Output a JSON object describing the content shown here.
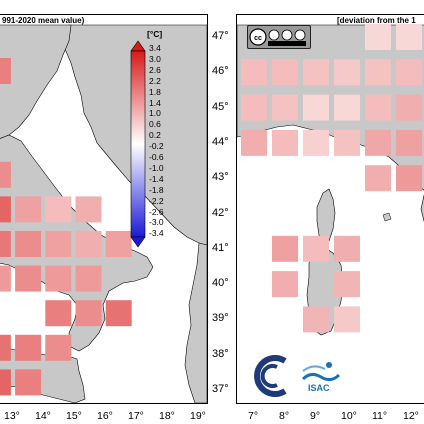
{
  "left_panel": {
    "title": "991-2020 mean value)",
    "lon_ticks": [
      "13°",
      "14°",
      "15°",
      "16°",
      "17°",
      "18°",
      "19°"
    ]
  },
  "right_panel": {
    "title": "[deviation from the 1",
    "lon_ticks": [
      "7°",
      "8°",
      "9°",
      "10°",
      "11°",
      "12°"
    ],
    "lat_ticks": [
      "47°",
      "46°",
      "45°",
      "44°",
      "43°",
      "42°",
      "41°",
      "40°",
      "39°",
      "38°",
      "37°"
    ]
  },
  "colorbar": {
    "unit": "[°C]",
    "labels": [
      "3.4",
      "3.0",
      "2.6",
      "2.2",
      "1.8",
      "1.4",
      "1.0",
      "0.6",
      "0.2",
      "-0.2",
      "-0.6",
      "-1.0",
      "-1.4",
      "-1.8",
      "-2.2",
      "-2.6",
      "-3.0",
      "-3.4"
    ],
    "top_color": "#d81a1a",
    "bottom_color": "#1a1ad8",
    "mid_color": "#ffffff"
  },
  "license_badge": "cc-by-nc-sa",
  "logos": [
    "cnr-logo",
    "isac-logo"
  ],
  "logo_text": "ISAC",
  "land_color": "#c8c8c8",
  "sea_color": "#ffffff",
  "anomaly_cells_left": [
    {
      "lon": 11.5,
      "lat": 46.0,
      "value": 1.9
    },
    {
      "lon": 12.5,
      "lat": 46.0,
      "value": 1.9
    },
    {
      "lon": 11.5,
      "lat": 44.0,
      "value": 1.5
    },
    {
      "lon": 11.5,
      "lat": 43.0,
      "value": 2.3
    },
    {
      "lon": 12.5,
      "lat": 43.0,
      "value": 1.7
    },
    {
      "lon": 11.5,
      "lat": 42.0,
      "value": 2.5
    },
    {
      "lon": 12.5,
      "lat": 42.0,
      "value": 2.3
    },
    {
      "lon": 13.5,
      "lat": 42.0,
      "value": 1.4
    },
    {
      "lon": 14.5,
      "lat": 42.0,
      "value": 1.0
    },
    {
      "lon": 15.5,
      "lat": 42.0,
      "value": 1.2
    },
    {
      "lon": 11.5,
      "lat": 41.0,
      "value": 2.5
    },
    {
      "lon": 12.5,
      "lat": 41.0,
      "value": 2.0
    },
    {
      "lon": 13.5,
      "lat": 41.0,
      "value": 1.7
    },
    {
      "lon": 14.5,
      "lat": 41.0,
      "value": 1.4
    },
    {
      "lon": 15.5,
      "lat": 41.0,
      "value": 1.2
    },
    {
      "lon": 16.5,
      "lat": 41.0,
      "value": 1.4
    },
    {
      "lon": 12.5,
      "lat": 40.0,
      "value": 1.5
    },
    {
      "lon": 13.5,
      "lat": 40.0,
      "value": 1.7
    },
    {
      "lon": 14.5,
      "lat": 40.0,
      "value": 1.5
    },
    {
      "lon": 15.5,
      "lat": 40.0,
      "value": 1.5
    },
    {
      "lon": 14.5,
      "lat": 39.0,
      "value": 1.9
    },
    {
      "lon": 15.5,
      "lat": 39.0,
      "value": 1.7
    },
    {
      "lon": 16.5,
      "lat": 39.0,
      "value": 2.1
    },
    {
      "lon": 11.5,
      "lat": 38.0,
      "value": 2.3
    },
    {
      "lon": 12.5,
      "lat": 38.0,
      "value": 2.1
    },
    {
      "lon": 13.5,
      "lat": 38.0,
      "value": 1.9
    },
    {
      "lon": 14.5,
      "lat": 38.0,
      "value": 1.7
    },
    {
      "lon": 12.5,
      "lat": 37.0,
      "value": 2.3
    },
    {
      "lon": 13.5,
      "lat": 37.0,
      "value": 1.9
    }
  ],
  "anomaly_cells_right": [
    {
      "lon": 11.0,
      "lat": 47.0,
      "value": 0.6
    },
    {
      "lon": 12.0,
      "lat": 47.0,
      "value": 0.6
    },
    {
      "lon": 7.0,
      "lat": 46.0,
      "value": 1.0
    },
    {
      "lon": 8.0,
      "lat": 46.0,
      "value": 1.0
    },
    {
      "lon": 9.0,
      "lat": 46.0,
      "value": 0.9
    },
    {
      "lon": 10.0,
      "lat": 46.0,
      "value": 0.8
    },
    {
      "lon": 11.0,
      "lat": 46.0,
      "value": 0.9
    },
    {
      "lon": 12.0,
      "lat": 46.0,
      "value": 1.0
    },
    {
      "lon": 7.0,
      "lat": 45.0,
      "value": 1.0
    },
    {
      "lon": 8.0,
      "lat": 45.0,
      "value": 0.9
    },
    {
      "lon": 9.0,
      "lat": 45.0,
      "value": 0.6
    },
    {
      "lon": 10.0,
      "lat": 45.0,
      "value": 0.6
    },
    {
      "lon": 11.0,
      "lat": 45.0,
      "value": 1.0
    },
    {
      "lon": 12.0,
      "lat": 45.0,
      "value": 1.2
    },
    {
      "lon": 7.0,
      "lat": 44.0,
      "value": 1.2
    },
    {
      "lon": 8.0,
      "lat": 44.0,
      "value": 1.0
    },
    {
      "lon": 9.0,
      "lat": 44.0,
      "value": 0.7
    },
    {
      "lon": 10.0,
      "lat": 44.0,
      "value": 0.9
    },
    {
      "lon": 11.0,
      "lat": 44.0,
      "value": 1.3
    },
    {
      "lon": 12.0,
      "lat": 44.0,
      "value": 1.4
    },
    {
      "lon": 11.0,
      "lat": 43.0,
      "value": 1.2
    },
    {
      "lon": 12.0,
      "lat": 43.0,
      "value": 1.5
    },
    {
      "lon": 8.0,
      "lat": 41.0,
      "value": 1.4
    },
    {
      "lon": 9.0,
      "lat": 41.0,
      "value": 1.0
    },
    {
      "lon": 10.0,
      "lat": 41.0,
      "value": 1.2
    },
    {
      "lon": 8.0,
      "lat": 40.0,
      "value": 1.2
    },
    {
      "lon": 10.0,
      "lat": 40.0,
      "value": 1.1
    },
    {
      "lon": 9.0,
      "lat": 39.0,
      "value": 1.1
    },
    {
      "lon": 10.0,
      "lat": 39.0,
      "value": 0.8
    }
  ]
}
